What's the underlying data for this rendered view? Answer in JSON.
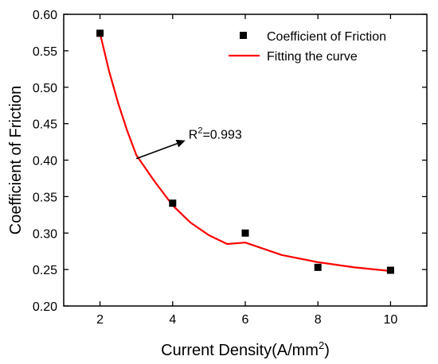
{
  "chart_data": {
    "type": "scatter",
    "xlabel": "Current Density(A/mm",
    "xlabel_sup": "2",
    "xlabel_end": ")",
    "ylabel": "Coefficient of Friction",
    "xlim": [
      1,
      11
    ],
    "ylim": [
      0.2,
      0.6
    ],
    "xticks": [
      2,
      4,
      6,
      8,
      10
    ],
    "yticks": [
      0.2,
      0.25,
      0.3,
      0.35,
      0.4,
      0.45,
      0.5,
      0.55,
      0.6
    ],
    "grid": false,
    "legend_position": "top-right",
    "series": [
      {
        "name": "Coefficient of Friction",
        "kind": "scatter",
        "marker": "square",
        "color": "#000000",
        "x": [
          2,
          4,
          6,
          8,
          10
        ],
        "y": [
          0.574,
          0.341,
          0.3,
          0.253,
          0.249
        ]
      },
      {
        "name": "Fitting the curve",
        "kind": "line",
        "color": "#ff0000",
        "x": [
          2,
          2.25,
          2.5,
          2.75,
          3,
          3.5,
          4,
          4.5,
          5,
          5.5,
          6,
          7,
          8,
          9,
          10
        ],
        "y": [
          0.574,
          0.522,
          0.478,
          0.44,
          0.407,
          0.371,
          0.338,
          0.314,
          0.297,
          0.285,
          0.287,
          0.27,
          0.26,
          0.253,
          0.248
        ]
      }
    ],
    "annotation": {
      "text_main": "R",
      "text_sup": "2",
      "text_rest": "=0.993",
      "arrow_from": [
        4.35,
        0.427
      ],
      "arrow_to": [
        3.0,
        0.402
      ]
    }
  }
}
